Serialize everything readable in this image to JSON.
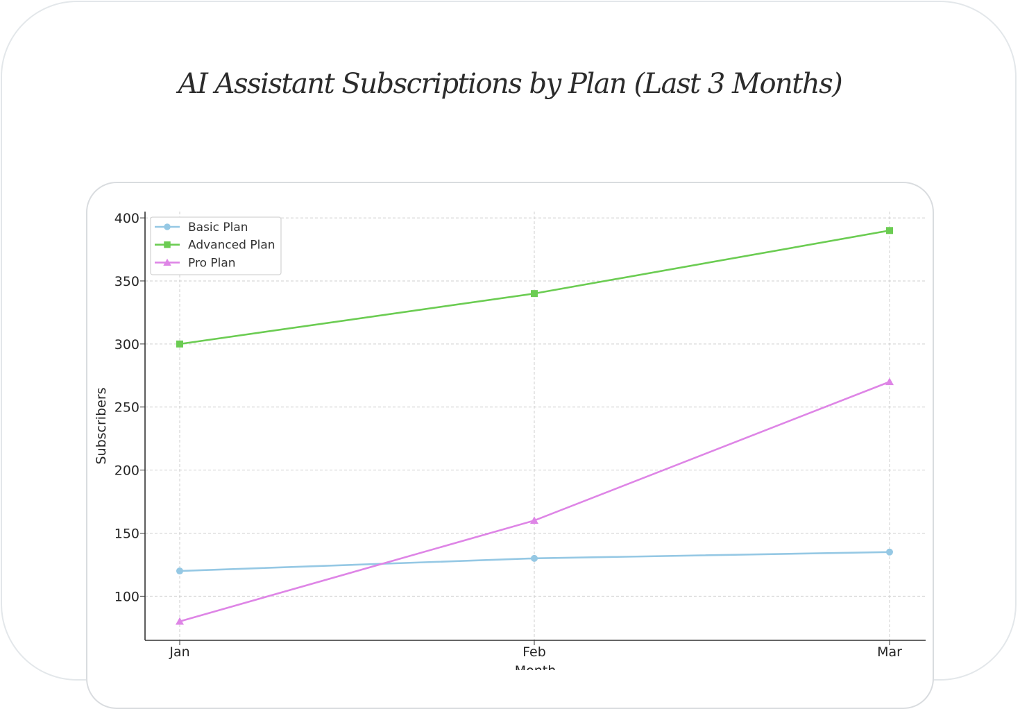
{
  "chart_title": "AI Assistant Subscriptions by Plan (Last 3 Months)",
  "chart_data": {
    "type": "line",
    "title": "AI Assistant Subscriptions by Plan (Last 3 Months)",
    "xlabel": "Month",
    "ylabel": "Subscribers",
    "categories": [
      "Jan",
      "Feb",
      "Mar"
    ],
    "ylim": [
      65,
      405
    ],
    "yticks": [
      100,
      150,
      200,
      250,
      300,
      350,
      400
    ],
    "grid": true,
    "legend_position": "upper-left",
    "series": [
      {
        "name": "Basic Plan",
        "values": [
          120,
          130,
          135
        ],
        "color": "#95c8e4",
        "marker": "circle"
      },
      {
        "name": "Advanced Plan",
        "values": [
          300,
          340,
          390
        ],
        "color": "#6bcc52",
        "marker": "square"
      },
      {
        "name": "Pro Plan",
        "values": [
          80,
          160,
          270
        ],
        "color": "#de85e6",
        "marker": "triangle"
      }
    ]
  }
}
